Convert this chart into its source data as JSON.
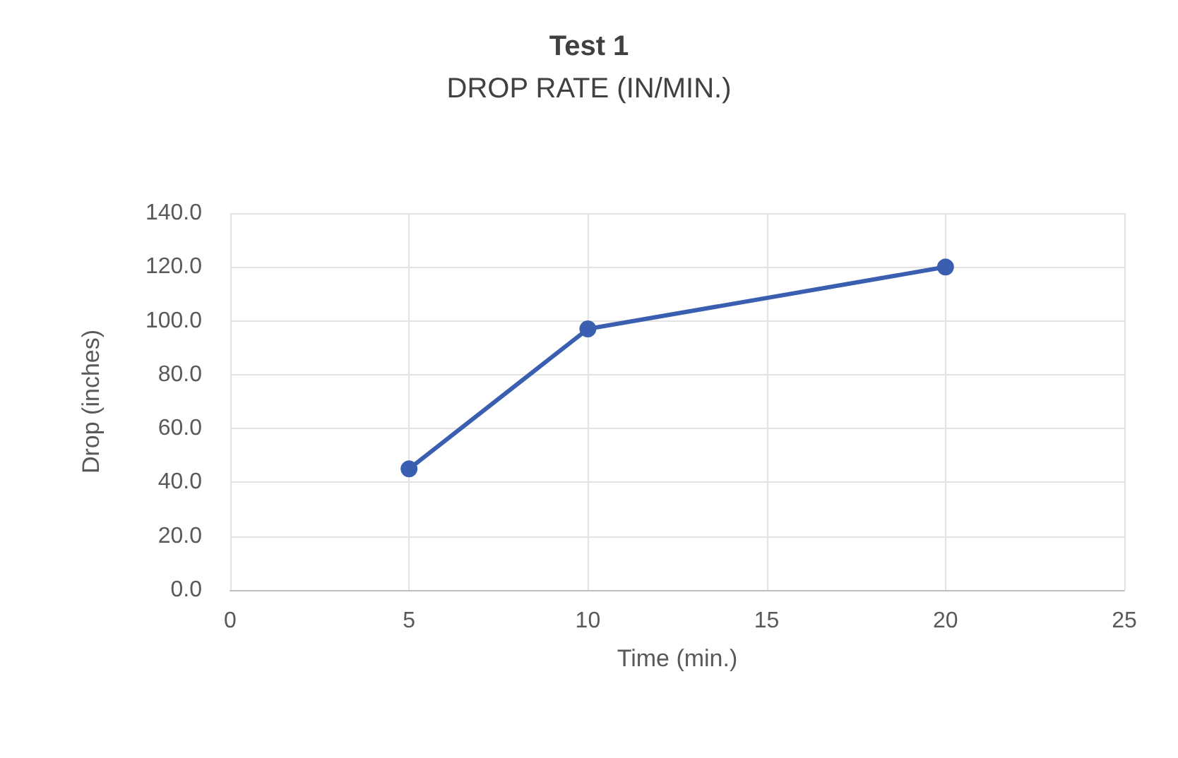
{
  "chart_data": {
    "type": "line",
    "title": "Test 1",
    "subtitle": "DROP RATE (IN/MIN.)",
    "xlabel": "Time (min.)",
    "ylabel": "Drop (inches)",
    "x": [
      5,
      10,
      20
    ],
    "series": [
      {
        "color": "#3a5fb0",
        "values": [
          45,
          97,
          120
        ]
      }
    ],
    "xlim": [
      0,
      25
    ],
    "xticks": [
      0,
      5,
      10,
      15,
      20,
      25
    ],
    "ylim": [
      0,
      140
    ],
    "yticks": [
      {
        "value": 0,
        "label": "0.0"
      },
      {
        "value": 20,
        "label": "20.0"
      },
      {
        "value": 40,
        "label": "40.0"
      },
      {
        "value": 60,
        "label": "60.0"
      },
      {
        "value": 80,
        "label": "80.0"
      },
      {
        "value": 100,
        "label": "100.0"
      },
      {
        "value": 120,
        "label": "120.0"
      },
      {
        "value": 140,
        "label": "140.0"
      }
    ],
    "grid": true,
    "marker": "circle",
    "line_style": "solid"
  }
}
